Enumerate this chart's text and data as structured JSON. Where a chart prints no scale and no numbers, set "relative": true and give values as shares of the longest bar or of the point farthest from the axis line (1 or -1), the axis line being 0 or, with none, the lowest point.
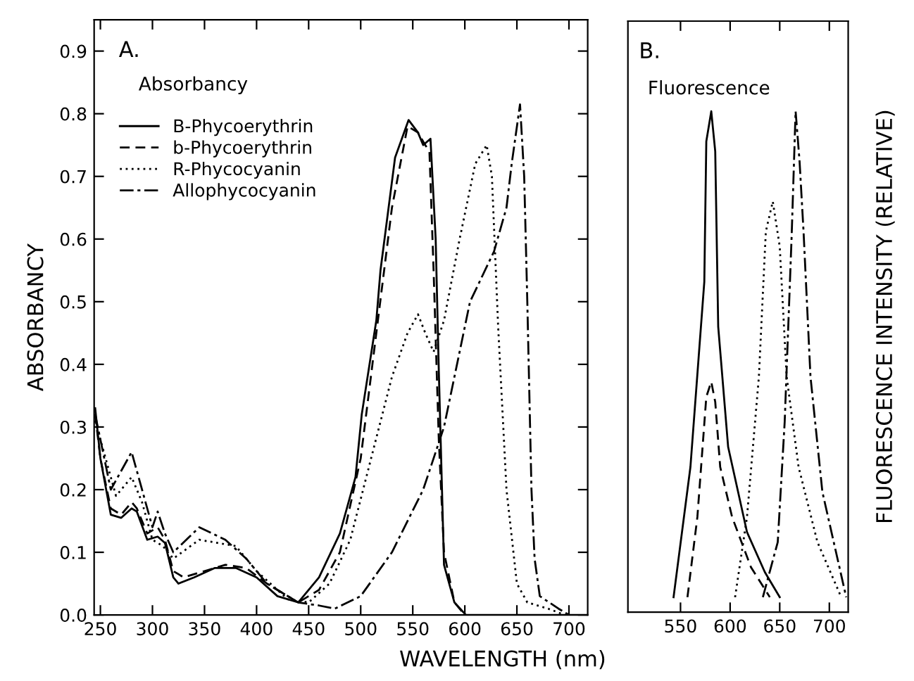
{
  "chart_data": [
    {
      "type": "line",
      "title": "A.",
      "subtitle": "Absorbancy",
      "xlabel": "WAVELENGTH (nm)",
      "ylabel": "ABSORBANCY",
      "xlim": [
        244,
        718
      ],
      "ylim": [
        0,
        0.95
      ],
      "xticks": [
        250,
        300,
        350,
        400,
        450,
        500,
        550,
        600,
        650,
        700
      ],
      "yticks": [
        {
          "value": 0,
          "label": "0.0"
        },
        {
          "value": 0.1,
          "label": "0.1"
        },
        {
          "value": 0.2,
          "label": "0.2"
        },
        {
          "value": 0.3,
          "label": "0.3"
        },
        {
          "value": 0.4,
          "label": "0.4"
        },
        {
          "value": 0.5,
          "label": "0.5"
        },
        {
          "value": 0.6,
          "label": "0.6"
        },
        {
          "value": 0.7,
          "label": "0.7"
        },
        {
          "value": 0.8,
          "label": "0.8"
        },
        {
          "value": 0.9,
          "label": "0.9"
        }
      ],
      "legend": "top left",
      "series": [
        {
          "name": "B-Phycoerythrin",
          "color": "#000000",
          "line_style": "solid",
          "x": [
            245,
            250,
            260,
            270,
            280,
            285,
            295,
            305,
            312,
            320,
            325,
            340,
            360,
            380,
            400,
            420,
            440,
            460,
            480,
            495,
            501,
            515,
            519,
            533,
            546,
            555,
            560,
            567,
            572,
            575,
            580,
            590,
            601,
            718
          ],
          "values": [
            0.33,
            0.25,
            0.16,
            0.155,
            0.17,
            0.165,
            0.12,
            0.125,
            0.115,
            0.06,
            0.05,
            0.06,
            0.075,
            0.075,
            0.06,
            0.03,
            0.02,
            0.06,
            0.13,
            0.22,
            0.32,
            0.47,
            0.55,
            0.73,
            0.79,
            0.77,
            0.75,
            0.76,
            0.6,
            0.39,
            0.08,
            0.02,
            0.0,
            0.0
          ]
        },
        {
          "name": "b-Phycoerythrin",
          "color": "#000000",
          "line_style": "dashed",
          "x": [
            245,
            250,
            260,
            270,
            280,
            285,
            295,
            305,
            312,
            320,
            330,
            350,
            370,
            390,
            410,
            440,
            460,
            480,
            500,
            515,
            530,
            545,
            555,
            562,
            566,
            570,
            575,
            580,
            590,
            600
          ],
          "values": [
            0.32,
            0.25,
            0.17,
            0.16,
            0.18,
            0.17,
            0.13,
            0.14,
            0.12,
            0.07,
            0.06,
            0.07,
            0.08,
            0.075,
            0.05,
            0.02,
            0.04,
            0.1,
            0.25,
            0.45,
            0.65,
            0.78,
            0.77,
            0.75,
            0.74,
            0.55,
            0.28,
            0.1,
            0.02,
            0.0
          ]
        },
        {
          "name": "R-Phycocyanin",
          "color": "#000000",
          "line_style": "dotted",
          "x": [
            245,
            250,
            265,
            280,
            290,
            300,
            310,
            320,
            345,
            380,
            400,
            430,
            450,
            470,
            490,
            510,
            530,
            545,
            555,
            562,
            570,
            580,
            595,
            610,
            621,
            626,
            632,
            640,
            650,
            660,
            680,
            696
          ],
          "values": [
            0.31,
            0.28,
            0.19,
            0.22,
            0.18,
            0.12,
            0.11,
            0.09,
            0.12,
            0.11,
            0.07,
            0.025,
            0.02,
            0.05,
            0.12,
            0.25,
            0.38,
            0.45,
            0.48,
            0.45,
            0.42,
            0.47,
            0.6,
            0.72,
            0.75,
            0.7,
            0.46,
            0.2,
            0.05,
            0.02,
            0.01,
            0.0
          ]
        },
        {
          "name": "Allophycocyanin",
          "color": "#000000",
          "line_style": "dashdot",
          "x": [
            245,
            250,
            260,
            280,
            290,
            300,
            305,
            312,
            320,
            345,
            370,
            390,
            410,
            440,
            460,
            475,
            500,
            530,
            560,
            580,
            605,
            628,
            640,
            645,
            653,
            657,
            660,
            664,
            667,
            672,
            690,
            700
          ],
          "values": [
            0.32,
            0.28,
            0.2,
            0.26,
            0.2,
            0.14,
            0.165,
            0.13,
            0.1,
            0.14,
            0.12,
            0.09,
            0.05,
            0.02,
            0.015,
            0.01,
            0.03,
            0.1,
            0.2,
            0.3,
            0.5,
            0.58,
            0.65,
            0.72,
            0.815,
            0.7,
            0.5,
            0.2,
            0.09,
            0.03,
            0.01,
            0.0
          ]
        }
      ]
    },
    {
      "type": "line",
      "title": "B.",
      "subtitle": "Fluorescence",
      "ylabel": "FLUORESCENCE INTENSITY (RELATIVE)",
      "relative": true,
      "xlim": [
        497,
        719
      ],
      "xticks": [
        550,
        600,
        650,
        700
      ],
      "tick_labels": "x",
      "series": [
        {
          "color": "#000000",
          "line_style": "solid",
          "x": [
            543,
            560,
            574,
            576,
            581,
            585,
            588,
            598,
            617,
            635,
            650
          ],
          "values": [
            0.03,
            0.29,
            0.66,
            0.94,
            1.0,
            0.92,
            0.57,
            0.33,
            0.16,
            0.08,
            0.03
          ]
        },
        {
          "color": "#000000",
          "line_style": "dashed",
          "x": [
            557,
            567,
            576,
            581,
            585,
            590,
            602,
            621,
            640
          ],
          "values": [
            0.03,
            0.19,
            0.43,
            0.46,
            0.42,
            0.29,
            0.19,
            0.09,
            0.03
          ]
        },
        {
          "color": "#000000",
          "line_style": "dotted",
          "x": [
            605,
            617,
            629,
            636,
            643,
            650,
            657,
            669,
            688,
            712
          ],
          "values": [
            0.03,
            0.19,
            0.47,
            0.76,
            0.82,
            0.73,
            0.47,
            0.29,
            0.14,
            0.03
          ]
        },
        {
          "color": "#000000",
          "line_style": "dashdot",
          "x": [
            633,
            648,
            655,
            662,
            666,
            670,
            674,
            681,
            693,
            717
          ],
          "values": [
            0.03,
            0.14,
            0.38,
            0.75,
            1.0,
            0.9,
            0.76,
            0.47,
            0.24,
            0.03
          ]
        }
      ]
    }
  ]
}
